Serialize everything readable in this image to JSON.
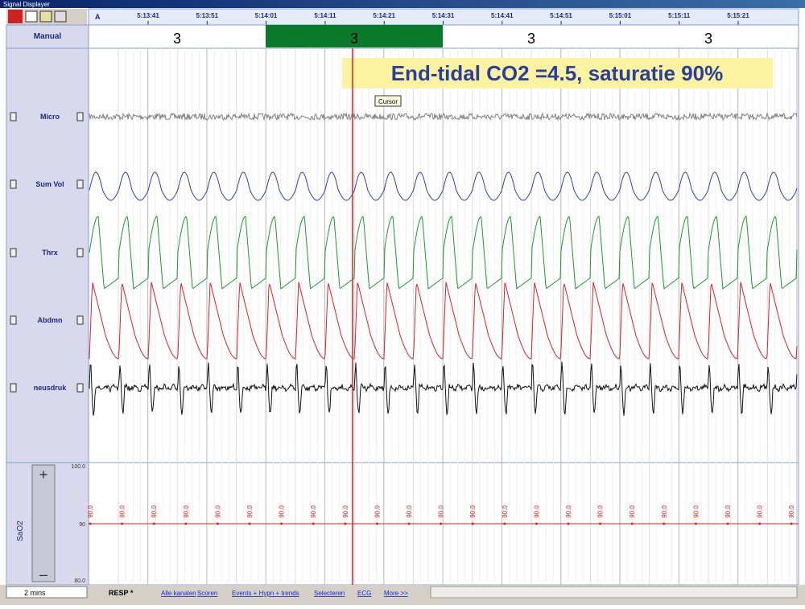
{
  "window": {
    "title": "Signal Displayer"
  },
  "ruler": {
    "corner": "A",
    "times": [
      "5:13:41",
      "5:13:51",
      "5:14:01",
      "5:14:11",
      "5:14:21",
      "5:14:31",
      "5:14:41",
      "5:14:51",
      "5:15:01",
      "5:15:11",
      "5:15:21"
    ]
  },
  "manual": {
    "label": "Manual",
    "scores": [
      "3",
      "3",
      "3",
      "3"
    ]
  },
  "annotation": "End-tidal CO2 =4.5, saturatie 90%",
  "cursor": {
    "label": "Cursor"
  },
  "channels": [
    "Micro",
    "Sum Vol",
    "Thrx",
    "Abdmn",
    "neusdruk"
  ],
  "sao2": {
    "label": "SaO2",
    "scale": [
      "100.0",
      "90",
      "80.0"
    ],
    "values": [
      "90.0",
      "90.0",
      "90.0",
      "90.0",
      "90.0",
      "90.0",
      "90.0",
      "90.0",
      "90.0",
      "90.0",
      "90.0",
      "90.0",
      "90.0",
      "90.0",
      "90.0",
      "90.0",
      "90.0",
      "90.0",
      "90.0",
      "90.0",
      "90.0",
      "90.0",
      "90.0"
    ]
  },
  "footer": {
    "zoom": "2 mins",
    "tabs": [
      "RESP *",
      "Alle kanalen",
      "Scoren",
      "Events + Hypn + trends",
      "Selecteren",
      "ECG",
      "More >>"
    ]
  }
}
